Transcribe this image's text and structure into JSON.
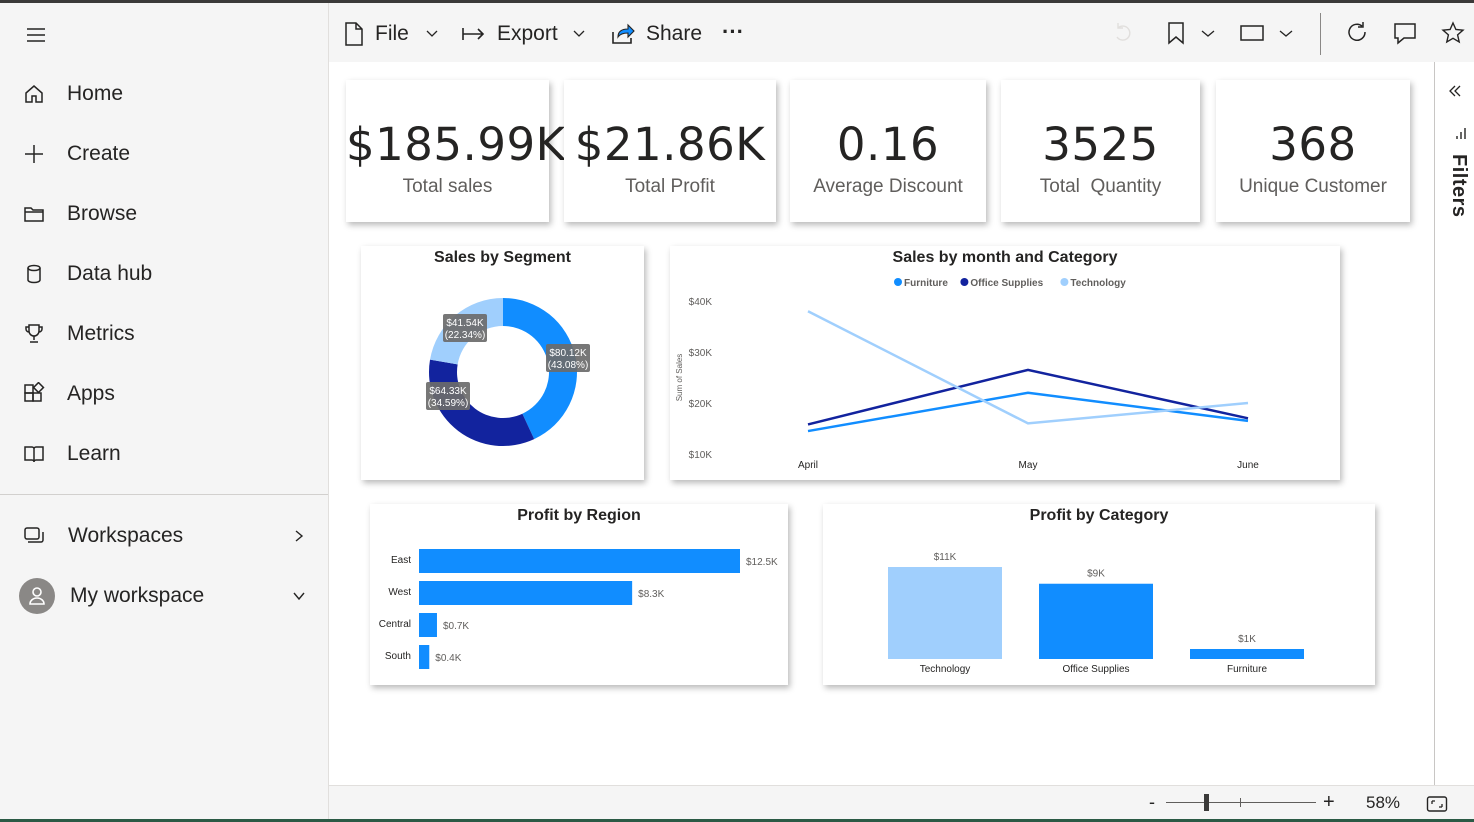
{
  "sidebar": {
    "items": [
      {
        "label": "Home",
        "icon": "home-icon"
      },
      {
        "label": "Create",
        "icon": "plus-icon"
      },
      {
        "label": "Browse",
        "icon": "folder-icon"
      },
      {
        "label": "Data hub",
        "icon": "database-icon"
      },
      {
        "label": "Metrics",
        "icon": "trophy-icon"
      },
      {
        "label": "Apps",
        "icon": "apps-icon"
      },
      {
        "label": "Learn",
        "icon": "book-icon"
      }
    ],
    "workspaces_label": "Workspaces",
    "my_workspace_label": "My workspace"
  },
  "toolbar": {
    "file_label": "File",
    "export_label": "Export",
    "share_label": "Share",
    "more_label": "···"
  },
  "kpis": [
    {
      "value": "$185.99K",
      "label": "Total sales"
    },
    {
      "value": "$21.86K",
      "label": "Total Profit"
    },
    {
      "value": "0.16",
      "label": "Average Discount"
    },
    {
      "value": "3525",
      "label": "Total  Quantity"
    },
    {
      "value": "368",
      "label": "Unique Customer"
    }
  ],
  "filters_label": "Filters",
  "status": {
    "minus": "-",
    "plus": "+",
    "zoom": "58%"
  },
  "colors": {
    "blue": "#118dff",
    "dark_blue": "#12239e",
    "light_blue": "#a0cffd"
  },
  "chart_data": [
    {
      "type": "pie",
      "title": "Sales by Segment",
      "slices": [
        {
          "value": 80.12,
          "label": "$80.12K",
          "pct": "(43.08%)",
          "color": "#118dff"
        },
        {
          "value": 64.33,
          "label": "$64.33K",
          "pct": "(34.59%)",
          "color": "#12239e"
        },
        {
          "value": 41.54,
          "label": "$41.54K",
          "pct": "(22.34%)",
          "color": "#a0cffd"
        }
      ]
    },
    {
      "type": "line",
      "title": "Sales by month and Category",
      "ylabel": "Sum of Sales",
      "categories": [
        "April",
        "May",
        "June"
      ],
      "yticks": [
        "$10K",
        "$20K",
        "$30K",
        "$40K"
      ],
      "ylim": [
        10000,
        40000
      ],
      "series": [
        {
          "name": "Furniture",
          "values": [
            14500,
            22000,
            16500
          ],
          "color": "#118dff"
        },
        {
          "name": "Office Supplies",
          "values": [
            15800,
            26500,
            17000
          ],
          "color": "#12239e"
        },
        {
          "name": "Technology",
          "values": [
            38000,
            16000,
            20000
          ],
          "color": "#a0cffd"
        }
      ]
    },
    {
      "type": "bar",
      "orientation": "horizontal",
      "title": "Profit by Region",
      "categories": [
        "East",
        "West",
        "Central",
        "South"
      ],
      "values": [
        12.5,
        8.3,
        0.7,
        0.4
      ],
      "labels": [
        "$12.5K",
        "$8.3K",
        "$0.7K",
        "$0.4K"
      ],
      "color": "#118dff"
    },
    {
      "type": "bar",
      "title": "Profit by Category",
      "categories": [
        "Technology",
        "Office Supplies",
        "Furniture"
      ],
      "values": [
        11,
        9,
        1
      ],
      "labels": [
        "$11K",
        "$9K",
        "$1K"
      ],
      "colors": [
        "#a0cffd",
        "#118dff",
        "#118dff"
      ]
    }
  ]
}
